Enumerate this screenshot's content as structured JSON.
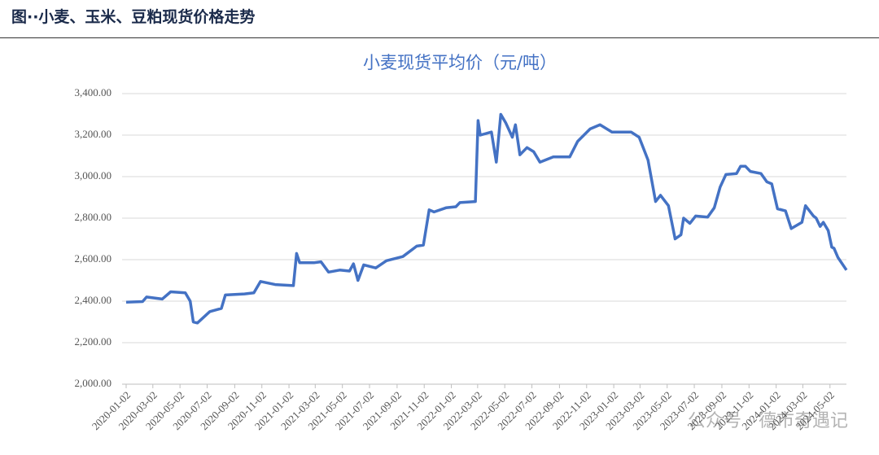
{
  "header": {
    "title": "图··小麦、玉米、豆粕现货价格走势"
  },
  "watermark": "公众号 · 德市奇遇记",
  "chart_data": {
    "type": "line",
    "title": "小麦现货平均价（元/吨）",
    "x": [
      "2020-01-02",
      "2020-02-08",
      "2020-02-17",
      "2020-03-23",
      "2020-04-11",
      "2020-05-14",
      "2020-05-25",
      "2020-06-01",
      "2020-06-10",
      "2020-07-08",
      "2020-08-03",
      "2020-08-12",
      "2020-09-24",
      "2020-10-15",
      "2020-10-30",
      "2020-12-02",
      "2021-01-12",
      "2021-01-19",
      "2021-01-26",
      "2021-02-27",
      "2021-03-15",
      "2021-04-01",
      "2021-04-26",
      "2021-05-18",
      "2021-05-27",
      "2021-06-06",
      "2021-06-19",
      "2021-07-16",
      "2021-08-09",
      "2021-09-15",
      "2021-10-16",
      "2021-10-31",
      "2021-11-13",
      "2021-11-24",
      "2021-12-21",
      "2022-01-12",
      "2022-01-21",
      "2022-02-25",
      "2022-03-03",
      "2022-03-08",
      "2022-04-02",
      "2022-04-13",
      "2022-04-23",
      "2022-05-04",
      "2022-05-19",
      "2022-05-26",
      "2022-06-05",
      "2022-06-21",
      "2022-07-06",
      "2022-07-20",
      "2022-08-19",
      "2022-09-25",
      "2022-10-13",
      "2022-11-10",
      "2022-12-02",
      "2022-12-29",
      "2023-02-10",
      "2023-02-28",
      "2023-03-20",
      "2023-04-06",
      "2023-04-17",
      "2023-05-05",
      "2023-05-20",
      "2023-06-02",
      "2023-06-08",
      "2023-06-22",
      "2023-07-05",
      "2023-08-01",
      "2023-08-16",
      "2023-08-29",
      "2023-09-11",
      "2023-10-05",
      "2023-10-14",
      "2023-10-25",
      "2023-11-05",
      "2023-11-29",
      "2023-12-12",
      "2023-12-23",
      "2024-01-05",
      "2024-01-23",
      "2024-02-05",
      "2024-02-29",
      "2024-03-08",
      "2024-03-26",
      "2024-04-01",
      "2024-04-10",
      "2024-04-17",
      "2024-04-28",
      "2024-05-06",
      "2024-05-11",
      "2024-05-20",
      "2024-06-08"
    ],
    "series": [
      {
        "name": "小麦现货平均价",
        "color": "#4472c4",
        "values": [
          2395,
          2398,
          2420,
          2410,
          2445,
          2440,
          2400,
          2300,
          2295,
          2350,
          2365,
          2430,
          2435,
          2440,
          2495,
          2480,
          2475,
          2630,
          2585,
          2585,
          2590,
          2540,
          2550,
          2545,
          2580,
          2500,
          2575,
          2560,
          2595,
          2615,
          2665,
          2670,
          2840,
          2830,
          2850,
          2855,
          2875,
          2880,
          3270,
          3200,
          3215,
          3070,
          3300,
          3260,
          3190,
          3250,
          3105,
          3140,
          3120,
          3070,
          3095,
          3095,
          3170,
          3230,
          3250,
          3215,
          3215,
          3190,
          3080,
          2880,
          2910,
          2860,
          2700,
          2720,
          2800,
          2775,
          2810,
          2805,
          2850,
          2950,
          3010,
          3015,
          3050,
          3050,
          3025,
          3015,
          2975,
          2965,
          2845,
          2835,
          2750,
          2780,
          2860,
          2810,
          2800,
          2760,
          2780,
          2740,
          2660,
          2655,
          2610,
          2550
        ]
      }
    ],
    "xlim": [
      "2020-01-02",
      "2024-06-08"
    ],
    "xticks": [
      "2020-01-02",
      "2020-03-02",
      "2020-05-02",
      "2020-07-02",
      "2020-09-02",
      "2020-11-02",
      "2021-01-02",
      "2021-03-02",
      "2021-05-02",
      "2021-07-02",
      "2021-09-02",
      "2021-11-02",
      "2022-01-02",
      "2022-03-02",
      "2022-05-02",
      "2022-07-02",
      "2022-09-02",
      "2022-11-02",
      "2023-01-02",
      "2023-03-02",
      "2023-05-02",
      "2023-07-02",
      "2023-09-02",
      "2023-11-02",
      "2024-01-02",
      "2024-03-02",
      "2024-05-02"
    ],
    "ylim": [
      2000,
      3400
    ],
    "yticks": [
      {
        "value": 2000,
        "label": "2,000.00"
      },
      {
        "value": 2200,
        "label": "2,200.00"
      },
      {
        "value": 2400,
        "label": "2,400.00"
      },
      {
        "value": 2600,
        "label": "2,600.00"
      },
      {
        "value": 2800,
        "label": "2,800.00"
      },
      {
        "value": 3000,
        "label": "3,000.00"
      },
      {
        "value": 3200,
        "label": "3,200.00"
      },
      {
        "value": 3400,
        "label": "3,400.00"
      }
    ],
    "grid": true
  }
}
